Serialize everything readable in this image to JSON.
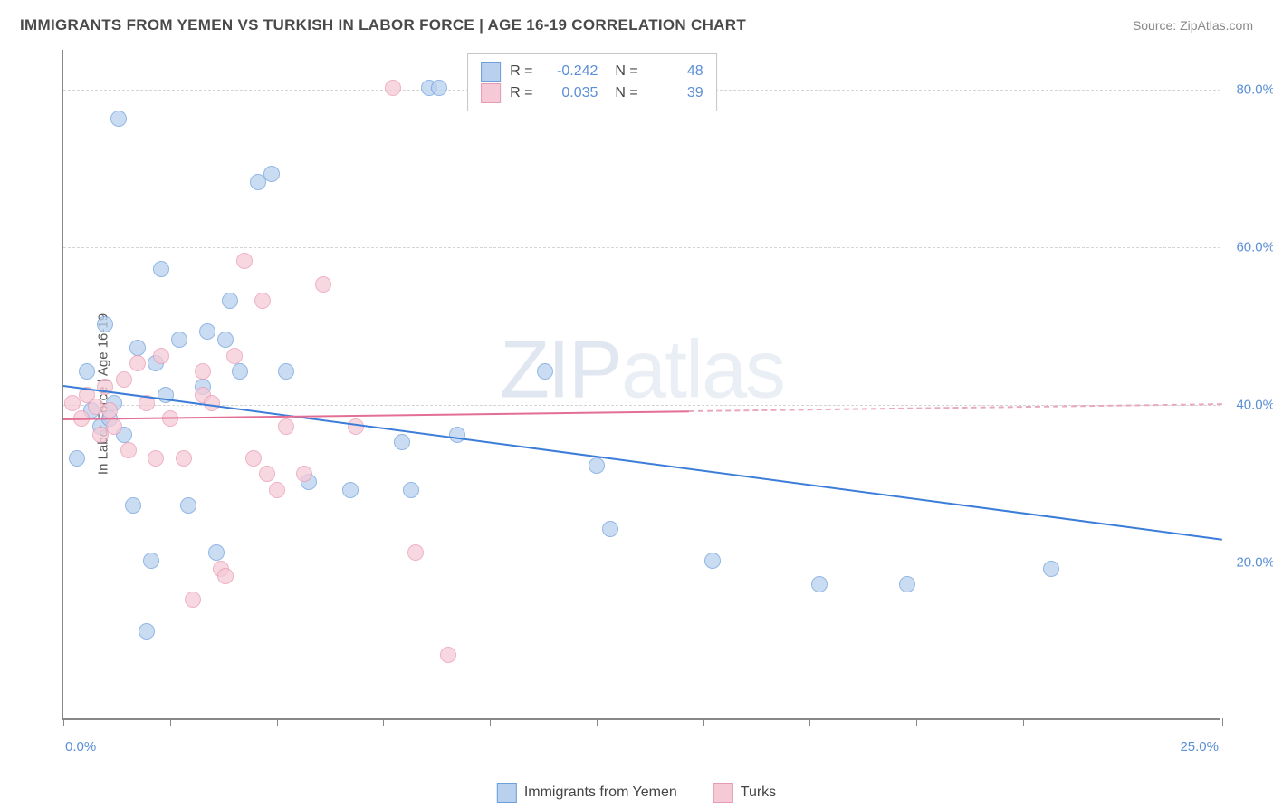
{
  "title": "IMMIGRANTS FROM YEMEN VS TURKISH IN LABOR FORCE | AGE 16-19 CORRELATION CHART",
  "source": "Source: ZipAtlas.com",
  "watermark_main": "ZIP",
  "watermark_sub": "atlas",
  "ylabel": "In Labor Force | Age 16-19",
  "chart": {
    "type": "scatter",
    "xlim": [
      0,
      25
    ],
    "ylim": [
      0,
      85
    ],
    "yticks": [
      20,
      40,
      60,
      80
    ],
    "ytick_labels": [
      "20.0%",
      "40.0%",
      "60.0%",
      "80.0%"
    ],
    "xtick_positions": [
      0,
      2.3,
      4.6,
      6.9,
      9.2,
      11.5,
      13.8,
      16.1,
      18.4,
      20.7,
      25
    ],
    "xaxis_left_label": "0.0%",
    "xaxis_right_label": "25.0%",
    "background_color": "#ffffff",
    "grid_color": "#d5d5d5",
    "axis_color": "#888888",
    "marker_radius": 9,
    "marker_stroke_width": 1.5,
    "series": [
      {
        "name": "Immigrants from Yemen",
        "fill_color": "#b9d1ee",
        "stroke_color": "#6d9fdd",
        "fill_opacity": 0.45,
        "r_value": "-0.242",
        "n_value": "48",
        "trend": {
          "x1": 0,
          "y1": 42.5,
          "x2": 25,
          "y2": 23.0,
          "color": "#3b7dd8",
          "width": 2
        },
        "points": [
          [
            0.3,
            33
          ],
          [
            0.5,
            44
          ],
          [
            0.6,
            39
          ],
          [
            0.8,
            37
          ],
          [
            0.9,
            50
          ],
          [
            1.0,
            38
          ],
          [
            1.1,
            40
          ],
          [
            1.2,
            76
          ],
          [
            1.3,
            36
          ],
          [
            1.5,
            27
          ],
          [
            1.6,
            47
          ],
          [
            1.8,
            11
          ],
          [
            1.9,
            20
          ],
          [
            2.0,
            45
          ],
          [
            2.1,
            57
          ],
          [
            2.2,
            41
          ],
          [
            2.5,
            48
          ],
          [
            2.7,
            27
          ],
          [
            3.0,
            42
          ],
          [
            3.1,
            49
          ],
          [
            3.3,
            21
          ],
          [
            3.5,
            48
          ],
          [
            3.6,
            53
          ],
          [
            3.8,
            44
          ],
          [
            4.2,
            68
          ],
          [
            4.5,
            69
          ],
          [
            4.8,
            44
          ],
          [
            5.3,
            30
          ],
          [
            6.2,
            29
          ],
          [
            7.3,
            35
          ],
          [
            7.5,
            29
          ],
          [
            7.9,
            80
          ],
          [
            8.1,
            80
          ],
          [
            8.5,
            36
          ],
          [
            10.4,
            44
          ],
          [
            11.5,
            32
          ],
          [
            11.8,
            24
          ],
          [
            14.0,
            20
          ],
          [
            16.3,
            17
          ],
          [
            18.2,
            17
          ],
          [
            21.3,
            19
          ]
        ]
      },
      {
        "name": "Turks",
        "fill_color": "#f5cad6",
        "stroke_color": "#e99ab3",
        "fill_opacity": 0.45,
        "r_value": "0.035",
        "n_value": "39",
        "trend_solid": {
          "x1": 0,
          "y1": 38.3,
          "x2": 13.5,
          "y2": 39.3,
          "color": "#e36f95",
          "width": 2
        },
        "trend_dashed": {
          "x1": 13.5,
          "y1": 39.3,
          "x2": 25,
          "y2": 40.2,
          "color": "#e8a9bd",
          "width": 2
        },
        "points": [
          [
            0.2,
            40
          ],
          [
            0.4,
            38
          ],
          [
            0.5,
            41
          ],
          [
            0.7,
            39.5
          ],
          [
            0.8,
            36
          ],
          [
            0.9,
            42
          ],
          [
            1.0,
            39
          ],
          [
            1.1,
            37
          ],
          [
            1.3,
            43
          ],
          [
            1.4,
            34
          ],
          [
            1.6,
            45
          ],
          [
            1.8,
            40
          ],
          [
            2.0,
            33
          ],
          [
            2.1,
            46
          ],
          [
            2.3,
            38
          ],
          [
            2.6,
            33
          ],
          [
            2.8,
            15
          ],
          [
            3.0,
            41
          ],
          [
            3.0,
            44
          ],
          [
            3.2,
            40
          ],
          [
            3.4,
            19
          ],
          [
            3.5,
            18
          ],
          [
            3.7,
            46
          ],
          [
            3.9,
            58
          ],
          [
            4.1,
            33
          ],
          [
            4.3,
            53
          ],
          [
            4.4,
            31
          ],
          [
            4.6,
            29
          ],
          [
            4.8,
            37
          ],
          [
            5.2,
            31
          ],
          [
            5.6,
            55
          ],
          [
            6.3,
            37
          ],
          [
            7.1,
            80
          ],
          [
            7.6,
            21
          ],
          [
            8.3,
            8
          ]
        ]
      }
    ]
  },
  "bottom_legend": [
    {
      "label": "Immigrants from Yemen",
      "fill": "#b9d1ee",
      "stroke": "#6d9fdd"
    },
    {
      "label": "Turks",
      "fill": "#f5cad6",
      "stroke": "#e99ab3"
    }
  ]
}
